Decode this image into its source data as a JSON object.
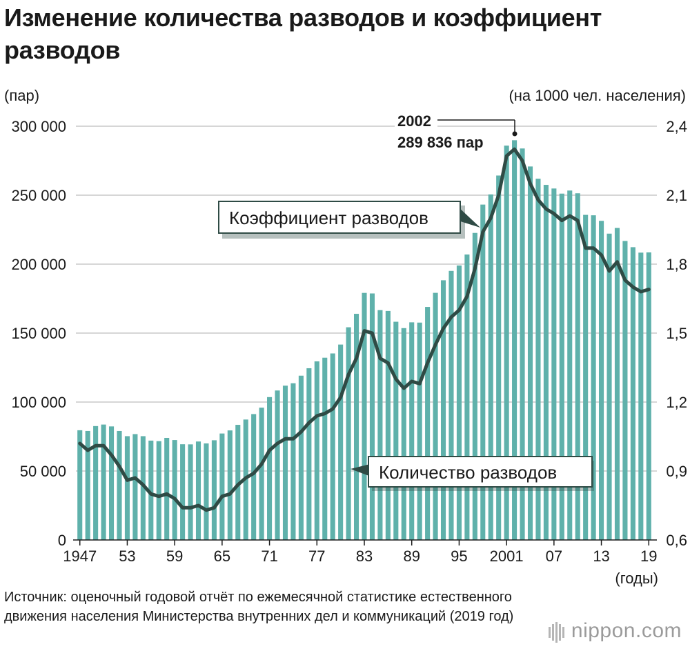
{
  "header": {
    "title": "Изменение количества разводов и коэффициент разводов",
    "unit_left": "(пар)",
    "unit_right": "(на 1000 чел. населения)"
  },
  "source": {
    "text": "Источник: оценочный годовой отчёт по ежемесячной статистике естественного движения населения Министерства внутренних дел и коммуникаций (2019 год)"
  },
  "logo": {
    "text": "nippon.com"
  },
  "colors": {
    "bar": "#5fb1ab",
    "line": "#2f4b45",
    "grid": "#bdbdbd",
    "text": "#1a1a1a"
  },
  "chart_data": {
    "type": "bar",
    "title": "Изменение количества разводов и коэффициент разводов",
    "xlabel": "(годы)",
    "ylabel": "(пар)",
    "y2label": "(на 1000 чел. населения)",
    "ylim": [
      0,
      300000
    ],
    "y2lim": [
      0.6,
      2.4
    ],
    "grid": true,
    "y_ticks": [
      0,
      50000,
      100000,
      150000,
      200000,
      250000,
      300000
    ],
    "y_tick_labels": [
      "0",
      "50 000",
      "100 000",
      "150 000",
      "200 000",
      "250 000",
      "300 000"
    ],
    "y2_ticks": [
      0.6,
      0.9,
      1.2,
      1.5,
      1.8,
      2.1,
      2.4
    ],
    "y2_tick_labels": [
      "0,6",
      "0,9",
      "1,2",
      "1,5",
      "1,8",
      "2,1",
      "2,4"
    ],
    "x_tick_years": [
      1947,
      1953,
      1959,
      1965,
      1971,
      1977,
      1983,
      1989,
      1995,
      2001,
      2007,
      2013,
      2019
    ],
    "x_tick_labels": [
      "1947",
      "53",
      "59",
      "65",
      "71",
      "77",
      "83",
      "89",
      "95",
      "2001",
      "07",
      "13",
      "19"
    ],
    "x": [
      1947,
      1948,
      1949,
      1950,
      1951,
      1952,
      1953,
      1954,
      1955,
      1956,
      1957,
      1958,
      1959,
      1960,
      1961,
      1962,
      1963,
      1964,
      1965,
      1966,
      1967,
      1968,
      1969,
      1970,
      1971,
      1972,
      1973,
      1974,
      1975,
      1976,
      1977,
      1978,
      1979,
      1980,
      1981,
      1982,
      1983,
      1984,
      1985,
      1986,
      1987,
      1988,
      1989,
      1990,
      1991,
      1992,
      1993,
      1994,
      1995,
      1996,
      1997,
      1998,
      1999,
      2000,
      2001,
      2002,
      2003,
      2004,
      2005,
      2006,
      2007,
      2008,
      2009,
      2010,
      2011,
      2012,
      2013,
      2014,
      2015,
      2016,
      2017,
      2018,
      2019
    ],
    "series": [
      {
        "name": "Количество разводов",
        "kind": "bar",
        "axis": "left",
        "values": [
          79551,
          79032,
          82575,
          83689,
          82331,
          79021,
          75267,
          76759,
          75267,
          72040,
          71651,
          74004,
          72455,
          69410,
          69323,
          71394,
          69996,
          72306,
          77195,
          79432,
          83478,
          87327,
          91280,
          95937,
          103595,
          108382,
          111877,
          113622,
          119135,
          124512,
          129485,
          132146,
          135250,
          141689,
          154221,
          163980,
          179150,
          178746,
          166640,
          166054,
          158227,
          153600,
          157811,
          157608,
          168969,
          179191,
          188297,
          195106,
          199016,
          206955,
          222635,
          243183,
          250529,
          264246,
          285911,
          289836,
          283854,
          270804,
          261917,
          257475,
          254832,
          251136,
          253353,
          251378,
          235719,
          235406,
          231383,
          222107,
          226215,
          216798,
          212296,
          208333,
          208496
        ]
      },
      {
        "name": "Коэффициент разводов",
        "kind": "line",
        "axis": "right",
        "values": [
          1.02,
          0.99,
          1.01,
          1.01,
          0.97,
          0.92,
          0.86,
          0.87,
          0.84,
          0.8,
          0.79,
          0.8,
          0.78,
          0.74,
          0.74,
          0.75,
          0.73,
          0.74,
          0.79,
          0.8,
          0.84,
          0.87,
          0.89,
          0.93,
          0.99,
          1.02,
          1.04,
          1.04,
          1.07,
          1.11,
          1.14,
          1.15,
          1.17,
          1.22,
          1.32,
          1.39,
          1.51,
          1.5,
          1.39,
          1.37,
          1.3,
          1.26,
          1.29,
          1.28,
          1.37,
          1.45,
          1.52,
          1.57,
          1.6,
          1.66,
          1.78,
          1.94,
          2.0,
          2.1,
          2.27,
          2.3,
          2.25,
          2.15,
          2.08,
          2.04,
          2.02,
          1.99,
          2.01,
          1.99,
          1.87,
          1.87,
          1.84,
          1.77,
          1.81,
          1.73,
          1.7,
          1.68,
          1.69
        ]
      }
    ],
    "annotations": {
      "peak_year": "2002",
      "peak_value": "289 836 пар",
      "rate_label": "Коэффициент разводов",
      "count_label": "Количество разводов"
    }
  }
}
